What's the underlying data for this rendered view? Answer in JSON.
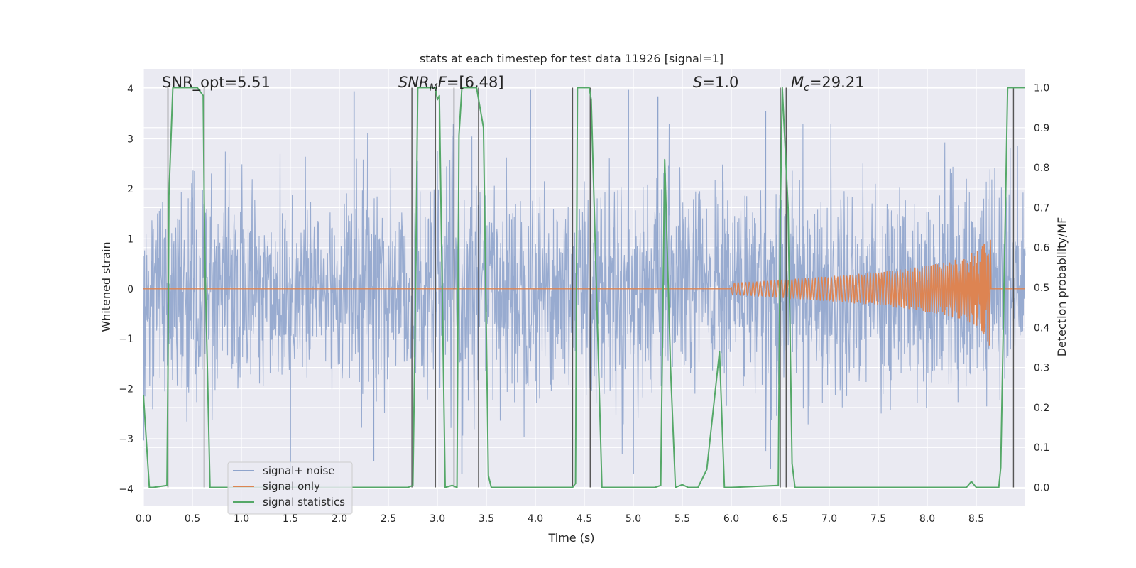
{
  "chart_data": {
    "type": "line",
    "title": "stats at each timestep for test data 11926 [signal=1]",
    "xlabel": "Time (s)",
    "ylabel": "Whitened strain",
    "y2label": "Detection probability/MF",
    "xlim": [
      0,
      9.0
    ],
    "ylim": [
      -4.35,
      4.4
    ],
    "y2lim": [
      -0.047,
      1.047
    ],
    "x_ticks": [
      "0.0",
      "0.5",
      "1.0",
      "1.5",
      "2.0",
      "2.5",
      "3.0",
      "3.5",
      "4.0",
      "4.5",
      "5.0",
      "5.5",
      "6.0",
      "6.5",
      "7.0",
      "7.5",
      "8.0",
      "8.5"
    ],
    "y_ticks": [
      "−4",
      "−3",
      "−2",
      "−1",
      "0",
      "1",
      "2",
      "3",
      "4"
    ],
    "y2_ticks": [
      "0.0",
      "0.1",
      "0.2",
      "0.3",
      "0.4",
      "0.5",
      "0.6",
      "0.7",
      "0.8",
      "0.9",
      "1.0"
    ],
    "grid": true,
    "legend_position": "lower-left",
    "colors": {
      "noise": "#8fa4cc",
      "signal": "#dd8452",
      "stats": "#55a868",
      "vline": "#555555",
      "plot_bg": "#eaeaf2",
      "grid": "#ffffff"
    },
    "annotations": {
      "snr_opt": "SNR_opt=5.51",
      "snr_mf_italic": "SNR",
      "snr_mf_sub": "M",
      "snr_mf_rest": "F",
      "snr_mf_value": "=[6.48]",
      "s_italic": "S",
      "s_value": "=1.0",
      "mc_italic": "M",
      "mc_sub": "c",
      "mc_value": "=29.21"
    },
    "series": [
      {
        "name": "signal+ noise",
        "description_values": "whitened noisy strain, roughly -2.5 to 2.5 with spikes near ±4",
        "spike_times": [
          2.15,
          3.95,
          4.95,
          5.25,
          6.35
        ],
        "spike_values": [
          3.95,
          3.98,
          3.98,
          3.85,
          3.55
        ],
        "dip_times": [
          1.5,
          2.35,
          3.25,
          5.0,
          6.4
        ],
        "dip_values": [
          -3.65,
          -3.45,
          -3.7,
          -3.7,
          -3.6
        ]
      },
      {
        "name": "signal only",
        "chirp_start": 6.0,
        "chirp_merger": 8.65,
        "peak_amplitude": 1.35
      },
      {
        "name": "signal statistics",
        "x": [
          0.0,
          0.06,
          0.1,
          0.24,
          0.25,
          0.26,
          0.3,
          0.55,
          0.61,
          0.62,
          0.63,
          0.68,
          2.7,
          2.75,
          2.77,
          2.8,
          2.98,
          3.0,
          3.02,
          3.08,
          3.15,
          3.2,
          3.22,
          3.25,
          3.4,
          3.47,
          3.52,
          3.55,
          3.6,
          4.38,
          4.41,
          4.43,
          4.55,
          4.57,
          4.68,
          5.22,
          5.28,
          5.32,
          5.38,
          5.43,
          5.5,
          5.56,
          5.6,
          5.66,
          5.75,
          5.88,
          5.93,
          5.98,
          6.0,
          6.48,
          6.5,
          6.52,
          6.58,
          6.62,
          6.65,
          6.68,
          6.72,
          8.4,
          8.45,
          8.5,
          8.65,
          8.73,
          8.75,
          8.82,
          8.87,
          8.9,
          8.91,
          8.93,
          9.0
        ],
        "y": [
          0.23,
          0.0,
          0.0,
          0.005,
          0.28,
          0.73,
          1.0,
          1.0,
          0.98,
          0.72,
          0.55,
          0.0,
          0.0,
          0.005,
          0.35,
          1.0,
          1.0,
          0.97,
          0.98,
          0.0,
          0.005,
          0.0,
          0.88,
          1.0,
          1.0,
          0.9,
          0.03,
          0.0,
          0.0,
          0.0,
          0.01,
          1.0,
          1.0,
          0.97,
          0.0,
          0.0,
          0.005,
          0.82,
          0.3,
          0.0,
          0.007,
          0.0,
          0.0,
          0.0,
          0.045,
          0.34,
          0.0,
          0.0,
          0.0,
          0.005,
          0.68,
          1.0,
          0.7,
          0.06,
          0.0,
          0.0,
          0.0,
          0.0,
          0.015,
          0.0,
          0.0,
          0.0,
          0.05,
          1.0,
          1.0,
          1.0,
          1.0,
          1.0,
          1.0
        ],
        "note": "last points extend to right edge"
      }
    ],
    "vlines": [
      0.25,
      0.62,
      2.74,
      2.98,
      3.17,
      3.42,
      4.38,
      4.56,
      6.5,
      6.56,
      8.88
    ],
    "legend": [
      "signal+ noise",
      "signal only",
      "signal statistics"
    ]
  }
}
